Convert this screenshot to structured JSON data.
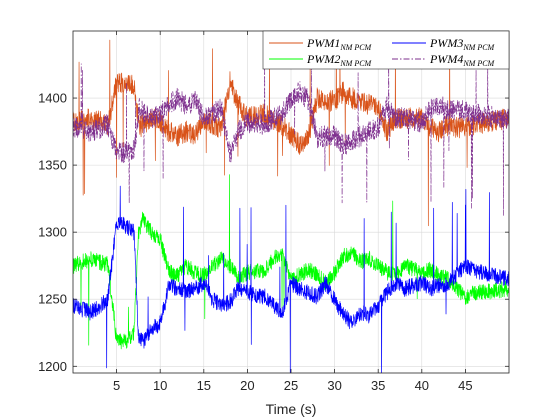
{
  "chart_data": {
    "type": "line",
    "xlabel": "Time (s)",
    "ylabel": "",
    "title": "",
    "xlim": [
      0,
      50
    ],
    "ylim": [
      1195,
      1450
    ],
    "xticks": [
      5,
      10,
      15,
      20,
      25,
      30,
      35,
      40,
      45
    ],
    "yticks": [
      1200,
      1250,
      1300,
      1350,
      1400
    ],
    "grid": true,
    "legend_position": "top-right",
    "series": [
      {
        "name": "PWM1",
        "name_subscript": "NM PCM",
        "color": "#D95319",
        "style": "solid",
        "points": [
          [
            0,
            1382
          ],
          [
            2,
            1385
          ],
          [
            4,
            1380
          ],
          [
            5,
            1412
          ],
          [
            7,
            1410
          ],
          [
            7.6,
            1378
          ],
          [
            9,
            1385
          ],
          [
            10,
            1382
          ],
          [
            11,
            1375
          ],
          [
            12,
            1372
          ],
          [
            13,
            1375
          ],
          [
            14,
            1373
          ],
          [
            15,
            1384
          ],
          [
            16,
            1380
          ],
          [
            17,
            1378
          ],
          [
            18,
            1412
          ],
          [
            19,
            1395
          ],
          [
            20,
            1385
          ],
          [
            22,
            1388
          ],
          [
            23,
            1382
          ],
          [
            24,
            1380
          ],
          [
            25,
            1372
          ],
          [
            26,
            1365
          ],
          [
            27,
            1372
          ],
          [
            28,
            1400
          ],
          [
            29,
            1398
          ],
          [
            30,
            1398
          ],
          [
            31,
            1405
          ],
          [
            32,
            1400
          ],
          [
            33,
            1398
          ],
          [
            34,
            1395
          ],
          [
            35,
            1392
          ],
          [
            36,
            1375
          ],
          [
            37,
            1385
          ],
          [
            38,
            1385
          ],
          [
            40,
            1385
          ],
          [
            41,
            1378
          ],
          [
            42,
            1375
          ],
          [
            43,
            1380
          ],
          [
            44,
            1378
          ],
          [
            45,
            1378
          ],
          [
            46,
            1380
          ],
          [
            48,
            1383
          ],
          [
            50,
            1385
          ]
        ]
      },
      {
        "name": "PWM2",
        "name_subscript": "NM PCM",
        "color": "#00FF00",
        "style": "solid",
        "points": [
          [
            0,
            1275
          ],
          [
            2,
            1280
          ],
          [
            4,
            1276
          ],
          [
            5,
            1220
          ],
          [
            6,
            1218
          ],
          [
            7,
            1225
          ],
          [
            7.5,
            1300
          ],
          [
            8,
            1310
          ],
          [
            9,
            1300
          ],
          [
            10,
            1295
          ],
          [
            11,
            1270
          ],
          [
            12,
            1268
          ],
          [
            13,
            1275
          ],
          [
            14,
            1270
          ],
          [
            15,
            1268
          ],
          [
            16,
            1275
          ],
          [
            17,
            1280
          ],
          [
            18,
            1275
          ],
          [
            19,
            1265
          ],
          [
            20,
            1270
          ],
          [
            22,
            1272
          ],
          [
            23,
            1280
          ],
          [
            24,
            1285
          ],
          [
            25,
            1265
          ],
          [
            26,
            1268
          ],
          [
            27,
            1272
          ],
          [
            28,
            1268
          ],
          [
            29,
            1262
          ],
          [
            30,
            1270
          ],
          [
            31,
            1282
          ],
          [
            32,
            1285
          ],
          [
            33,
            1278
          ],
          [
            34,
            1280
          ],
          [
            35,
            1275
          ],
          [
            36,
            1270
          ],
          [
            37,
            1268
          ],
          [
            38,
            1275
          ],
          [
            40,
            1270
          ],
          [
            41,
            1272
          ],
          [
            42,
            1268
          ],
          [
            43,
            1265
          ],
          [
            44,
            1258
          ],
          [
            45,
            1252
          ],
          [
            46,
            1255
          ],
          [
            48,
            1256
          ],
          [
            50,
            1258
          ]
        ]
      },
      {
        "name": "PWM3",
        "name_subscript": "NM PCM",
        "color": "#0000FF",
        "style": "solid",
        "points": [
          [
            0,
            1245
          ],
          [
            2,
            1240
          ],
          [
            4,
            1250
          ],
          [
            5,
            1308
          ],
          [
            6,
            1305
          ],
          [
            7,
            1300
          ],
          [
            7.5,
            1222
          ],
          [
            8,
            1218
          ],
          [
            9,
            1228
          ],
          [
            10,
            1232
          ],
          [
            11,
            1260
          ],
          [
            12,
            1258
          ],
          [
            13,
            1255
          ],
          [
            14,
            1258
          ],
          [
            15,
            1262
          ],
          [
            16,
            1250
          ],
          [
            17,
            1245
          ],
          [
            18,
            1248
          ],
          [
            19,
            1258
          ],
          [
            20,
            1255
          ],
          [
            22,
            1252
          ],
          [
            23,
            1245
          ],
          [
            24,
            1240
          ],
          [
            25,
            1262
          ],
          [
            26,
            1258
          ],
          [
            27,
            1255
          ],
          [
            28,
            1252
          ],
          [
            29,
            1262
          ],
          [
            30,
            1250
          ],
          [
            31,
            1238
          ],
          [
            32,
            1232
          ],
          [
            33,
            1240
          ],
          [
            34,
            1238
          ],
          [
            35,
            1245
          ],
          [
            36,
            1255
          ],
          [
            37,
            1262
          ],
          [
            38,
            1258
          ],
          [
            40,
            1262
          ],
          [
            41,
            1258
          ],
          [
            42,
            1260
          ],
          [
            43,
            1262
          ],
          [
            44,
            1268
          ],
          [
            45,
            1275
          ],
          [
            46,
            1272
          ],
          [
            48,
            1268
          ],
          [
            50,
            1265
          ]
        ]
      },
      {
        "name": "PWM4",
        "name_subscript": "NM PCM",
        "color": "#7E2F8E",
        "style": "dashdot",
        "points": [
          [
            0,
            1378
          ],
          [
            2,
            1375
          ],
          [
            4,
            1380
          ],
          [
            5,
            1358
          ],
          [
            7,
            1362
          ],
          [
            7.6,
            1392
          ],
          [
            9,
            1385
          ],
          [
            10,
            1388
          ],
          [
            11,
            1395
          ],
          [
            12,
            1400
          ],
          [
            13,
            1395
          ],
          [
            14,
            1398
          ],
          [
            15,
            1385
          ],
          [
            16,
            1388
          ],
          [
            17,
            1392
          ],
          [
            18,
            1358
          ],
          [
            19,
            1375
          ],
          [
            20,
            1382
          ],
          [
            22,
            1380
          ],
          [
            23,
            1385
          ],
          [
            24,
            1388
          ],
          [
            25,
            1400
          ],
          [
            26,
            1405
          ],
          [
            27,
            1398
          ],
          [
            28,
            1370
          ],
          [
            29,
            1372
          ],
          [
            30,
            1372
          ],
          [
            31,
            1365
          ],
          [
            32,
            1368
          ],
          [
            33,
            1372
          ],
          [
            34,
            1375
          ],
          [
            35,
            1378
          ],
          [
            36,
            1395
          ],
          [
            37,
            1385
          ],
          [
            38,
            1385
          ],
          [
            40,
            1382
          ],
          [
            41,
            1392
          ],
          [
            42,
            1395
          ],
          [
            43,
            1390
          ],
          [
            44,
            1392
          ],
          [
            45,
            1390
          ],
          [
            46,
            1388
          ],
          [
            48,
            1386
          ],
          [
            50,
            1384
          ]
        ]
      }
    ]
  }
}
